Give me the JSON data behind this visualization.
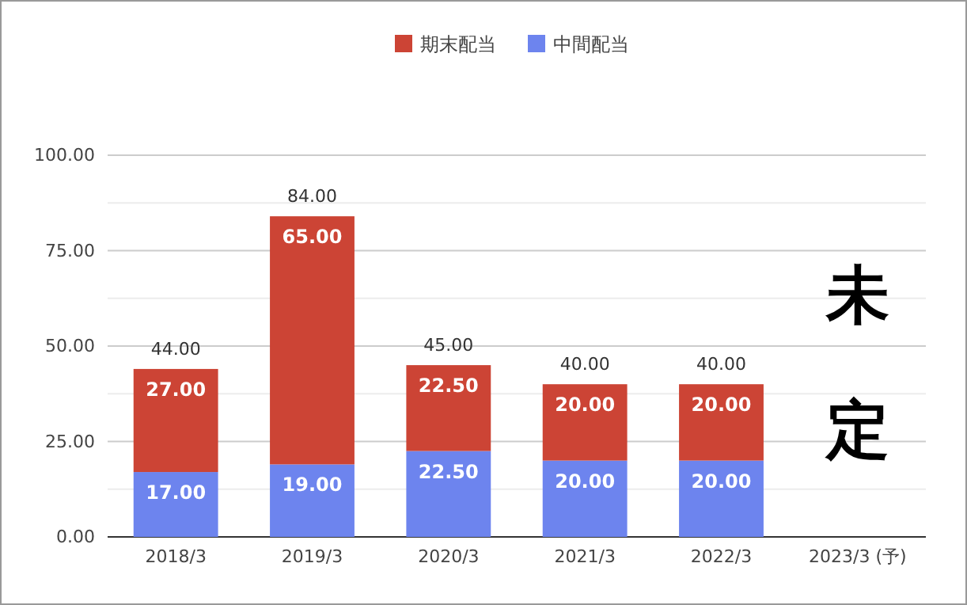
{
  "chart_data": {
    "type": "bar",
    "stacked": true,
    "categories": [
      "2018/3",
      "2019/3",
      "2020/3",
      "2021/3",
      "2022/3",
      "2023/3 (予)"
    ],
    "series": [
      {
        "name": "中間配当",
        "color": "#6d84ee",
        "values": [
          17,
          19,
          22.5,
          20,
          20,
          null
        ],
        "value_labels": [
          "17.00",
          "19.00",
          "22.50",
          "20.00",
          "20.00",
          null
        ]
      },
      {
        "name": "期末配当",
        "color": "#cc4435",
        "values": [
          27,
          65,
          22.5,
          20,
          20,
          null
        ],
        "value_labels": [
          "27.00",
          "65.00",
          "22.50",
          "20.00",
          "20.00",
          null
        ]
      }
    ],
    "totals": [
      "44.00",
      "84.00",
      "45.00",
      "40.00",
      "40.00",
      null
    ],
    "ylim": [
      0,
      100
    ],
    "yticks": [
      {
        "value": 0,
        "label": "0.00"
      },
      {
        "value": 12.5,
        "label": null
      },
      {
        "value": 25,
        "label": "25.00"
      },
      {
        "value": 37.5,
        "label": null
      },
      {
        "value": 50,
        "label": "50.00"
      },
      {
        "value": 62.5,
        "label": null
      },
      {
        "value": 75,
        "label": "75.00"
      },
      {
        "value": 87.5,
        "label": null
      },
      {
        "value": 100,
        "label": "100.00"
      }
    ],
    "grid": "y",
    "legend": "top",
    "annotations": [
      "未定"
    ]
  }
}
